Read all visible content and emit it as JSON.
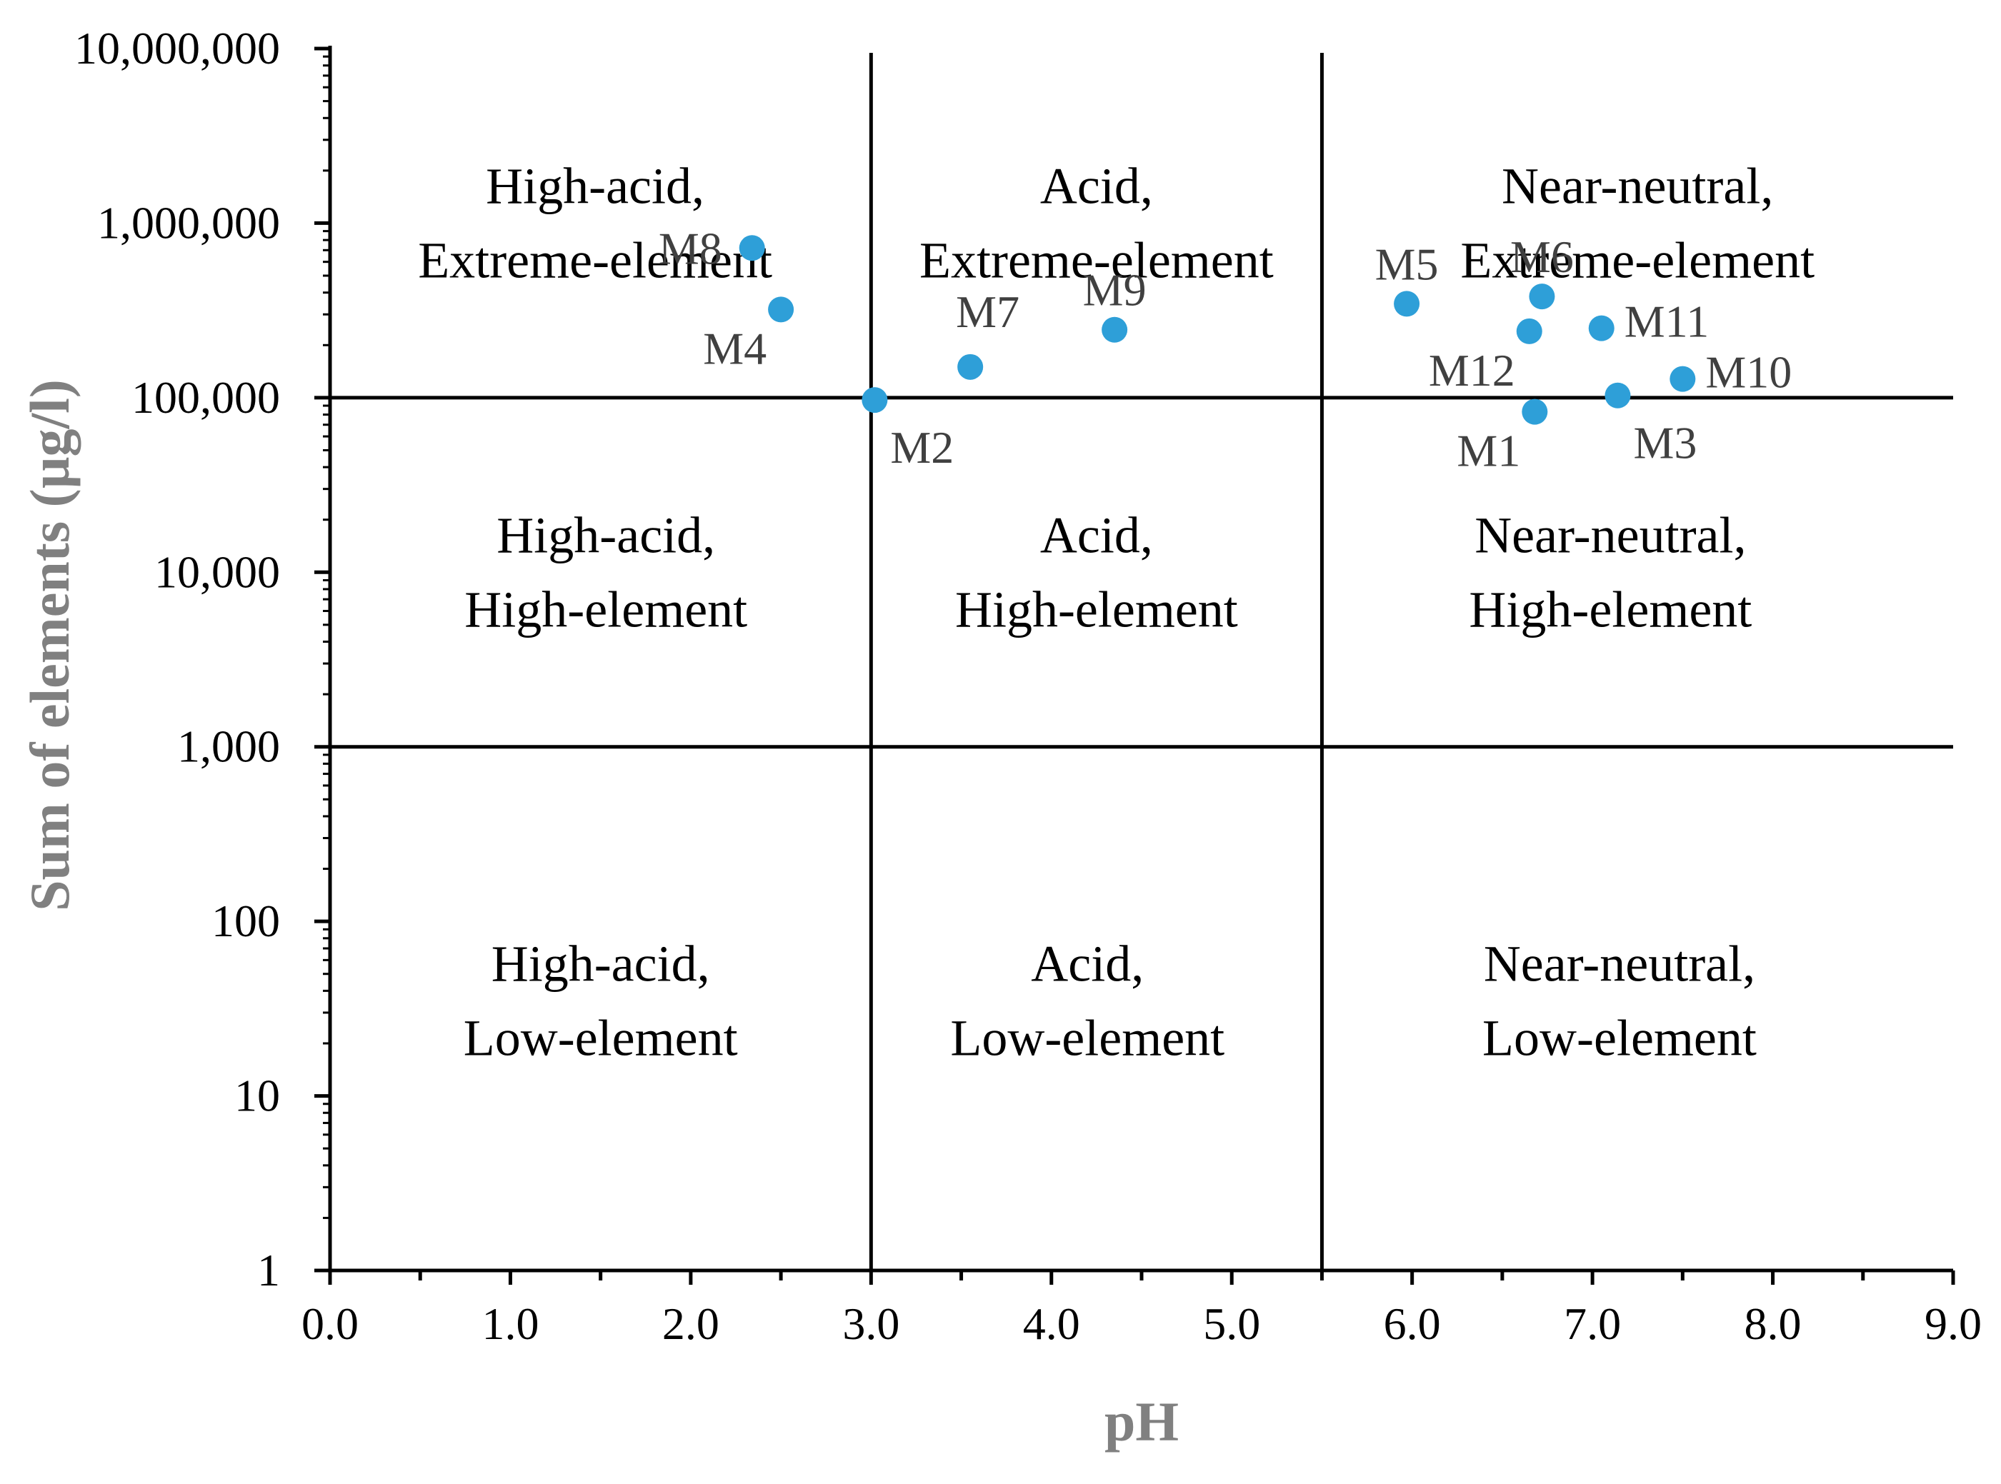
{
  "chart_data": {
    "type": "scatter",
    "title": "",
    "xlabel": "pH",
    "ylabel": "Sum of elements (µg/l)",
    "xlim": [
      0,
      9
    ],
    "ylim": [
      1,
      10000000
    ],
    "yscale": "log",
    "grid": false,
    "x_ticks": [
      "0.0",
      "1.0",
      "2.0",
      "3.0",
      "4.0",
      "5.0",
      "6.0",
      "7.0",
      "8.0",
      "9.0"
    ],
    "y_ticks": [
      "1",
      "10",
      "100",
      "1,000",
      "10,000",
      "100,000",
      "1,000,000",
      "10,000,000"
    ],
    "divider_lines": {
      "vertical_ph": [
        3.0,
        5.5
      ],
      "horizontal_sum": [
        1000,
        100000
      ]
    },
    "marker_color": "#2E9FD8",
    "points": [
      {
        "label": "M1",
        "x": 6.68,
        "y": 83000,
        "label_pos": "below-left"
      },
      {
        "label": "M2",
        "x": 3.02,
        "y": 97000,
        "label_pos": "below-right"
      },
      {
        "label": "M3",
        "x": 7.14,
        "y": 103000,
        "label_pos": "below-right"
      },
      {
        "label": "M4",
        "x": 2.5,
        "y": 320000,
        "label_pos": "below-left"
      },
      {
        "label": "M5",
        "x": 5.97,
        "y": 345000,
        "label_pos": "above"
      },
      {
        "label": "M6",
        "x": 6.72,
        "y": 380000,
        "label_pos": "above"
      },
      {
        "label": "M7",
        "x": 3.55,
        "y": 150000,
        "label_pos": "above-right"
      },
      {
        "label": "M8",
        "x": 2.34,
        "y": 720000,
        "label_pos": "left"
      },
      {
        "label": "M9",
        "x": 4.35,
        "y": 245000,
        "label_pos": "above"
      },
      {
        "label": "M10",
        "x": 7.5,
        "y": 128000,
        "label_pos": "right"
      },
      {
        "label": "M11",
        "x": 7.05,
        "y": 250000,
        "label_pos": "right"
      },
      {
        "label": "M12",
        "x": 6.65,
        "y": 240000,
        "label_pos": "below-left"
      }
    ],
    "regions": [
      {
        "lines": [
          "High-acid,",
          "Extreme-element"
        ],
        "x": 1.47,
        "y": 1000000
      },
      {
        "lines": [
          "Acid,",
          "Extreme-element"
        ],
        "x": 4.25,
        "y": 1000000
      },
      {
        "lines": [
          "Near-neutral,",
          "Extreme-element"
        ],
        "x": 7.25,
        "y": 1000000
      },
      {
        "lines": [
          "High-acid,",
          "High-element"
        ],
        "x": 1.53,
        "y": 10000
      },
      {
        "lines": [
          "Acid,",
          "High-element"
        ],
        "x": 4.25,
        "y": 10000
      },
      {
        "lines": [
          "Near-neutral,",
          "High-element"
        ],
        "x": 7.1,
        "y": 10000
      },
      {
        "lines": [
          "High-acid,",
          "Low-element"
        ],
        "x": 1.5,
        "y": 35
      },
      {
        "lines": [
          "Acid,",
          "Low-element"
        ],
        "x": 4.2,
        "y": 35
      },
      {
        "lines": [
          "Near-neutral,",
          "Low-element"
        ],
        "x": 7.15,
        "y": 35
      }
    ]
  }
}
